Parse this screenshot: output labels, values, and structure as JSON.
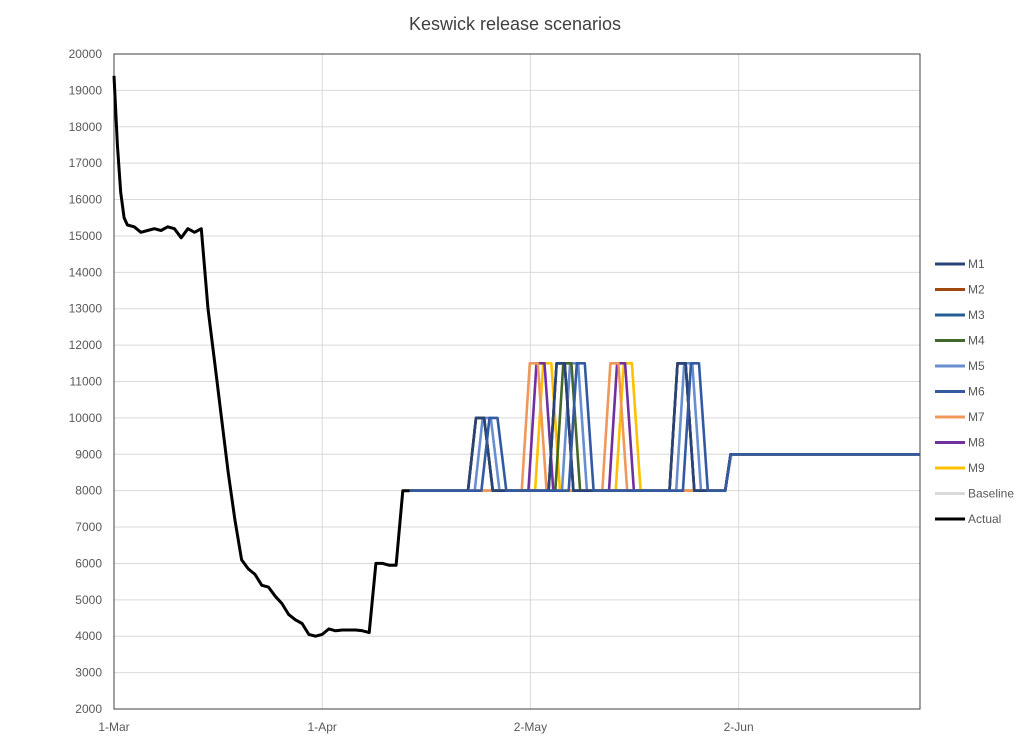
{
  "chart_data": {
    "type": "line",
    "title": "Keswick release scenarios",
    "xlabel": "",
    "ylabel": "",
    "ylim": [
      2000,
      20000
    ],
    "yticks": [
      2000,
      3000,
      4000,
      5000,
      6000,
      7000,
      8000,
      9000,
      10000,
      11000,
      12000,
      13000,
      14000,
      15000,
      16000,
      17000,
      18000,
      19000,
      20000
    ],
    "xlim": [
      "2020-03-01",
      "2020-06-29"
    ],
    "xticks": [
      {
        "date": "2020-03-01",
        "label": "1-Mar"
      },
      {
        "date": "2020-04-01",
        "label": "1-Apr"
      },
      {
        "date": "2020-05-02",
        "label": "2-May"
      },
      {
        "date": "2020-06-02",
        "label": "2-Jun"
      }
    ],
    "grid": true,
    "legend_position": "right",
    "series": [
      {
        "name": "M1",
        "color": "#264478",
        "pulses": [
          [
            "2020-04-23",
            10000
          ],
          [
            "2020-05-05",
            11500
          ],
          [
            "2020-05-23",
            11500
          ]
        ]
      },
      {
        "name": "M2",
        "color": "#9E480E",
        "pulses": [
          [
            "2020-04-23",
            10000
          ],
          [
            "2020-05-05",
            11500
          ],
          [
            "2020-05-23",
            11500
          ]
        ]
      },
      {
        "name": "M3",
        "color": "#255E91",
        "pulses": [
          [
            "2020-04-23",
            10000
          ],
          [
            "2020-05-05",
            11500
          ],
          [
            "2020-05-23",
            11500
          ]
        ]
      },
      {
        "name": "M4",
        "color": "#43682B",
        "pulses": [
          [
            "2020-04-23",
            10000
          ],
          [
            "2020-05-06",
            11500
          ],
          [
            "2020-05-23",
            11500
          ]
        ]
      },
      {
        "name": "M5",
        "color": "#698ED0",
        "pulses": [
          [
            "2020-04-24",
            10000
          ],
          [
            "2020-05-07",
            11500
          ],
          [
            "2020-05-24",
            11500
          ]
        ]
      },
      {
        "name": "M6",
        "color": "#335AA1",
        "pulses": [
          [
            "2020-04-25",
            10000
          ],
          [
            "2020-05-08",
            11500
          ],
          [
            "2020-05-25",
            11500
          ]
        ]
      },
      {
        "name": "M7",
        "color": "#F1975A",
        "pulses": [
          [
            "2020-05-01",
            11500
          ],
          [
            "2020-05-13",
            11500
          ]
        ]
      },
      {
        "name": "M8",
        "color": "#7030A0",
        "pulses": [
          [
            "2020-05-02",
            11500
          ],
          [
            "2020-05-14",
            11500
          ]
        ]
      },
      {
        "name": "M9",
        "color": "#FFC000",
        "pulses": [
          [
            "2020-05-03",
            11500
          ],
          [
            "2020-05-15",
            11500
          ]
        ]
      },
      {
        "name": "Baseline",
        "color": "#D9D9D9",
        "points": [
          [
            "2020-04-14",
            8000
          ],
          [
            "2020-05-31",
            8000
          ],
          [
            "2020-06-01",
            9000
          ],
          [
            "2020-06-29",
            9000
          ]
        ]
      },
      {
        "name": "Actual",
        "color": "#000000",
        "points": [
          [
            "2020-03-01",
            19400
          ],
          [
            "2020-03-01T12:00",
            17500
          ],
          [
            "2020-03-02",
            16200
          ],
          [
            "2020-03-02T12:00",
            15500
          ],
          [
            "2020-03-03",
            15300
          ],
          [
            "2020-03-04",
            15250
          ],
          [
            "2020-03-05",
            15100
          ],
          [
            "2020-03-06",
            15150
          ],
          [
            "2020-03-07",
            15200
          ],
          [
            "2020-03-08",
            15150
          ],
          [
            "2020-03-09",
            15250
          ],
          [
            "2020-03-10",
            15200
          ],
          [
            "2020-03-11",
            14950
          ],
          [
            "2020-03-12",
            15200
          ],
          [
            "2020-03-13",
            15100
          ],
          [
            "2020-03-14",
            15200
          ],
          [
            "2020-03-15",
            13000
          ],
          [
            "2020-03-16",
            11500
          ],
          [
            "2020-03-17",
            10000
          ],
          [
            "2020-03-18",
            8500
          ],
          [
            "2020-03-19",
            7200
          ],
          [
            "2020-03-20",
            6100
          ],
          [
            "2020-03-21",
            5850
          ],
          [
            "2020-03-22",
            5700
          ],
          [
            "2020-03-23",
            5400
          ],
          [
            "2020-03-24",
            5350
          ],
          [
            "2020-03-25",
            5100
          ],
          [
            "2020-03-26",
            4900
          ],
          [
            "2020-03-27",
            4600
          ],
          [
            "2020-03-28",
            4450
          ],
          [
            "2020-03-29",
            4350
          ],
          [
            "2020-03-30",
            4050
          ],
          [
            "2020-03-31",
            4000
          ],
          [
            "2020-04-01",
            4050
          ],
          [
            "2020-04-02",
            4200
          ],
          [
            "2020-04-03",
            4150
          ],
          [
            "2020-04-04",
            4170
          ],
          [
            "2020-04-05",
            4170
          ],
          [
            "2020-04-06",
            4170
          ],
          [
            "2020-04-07",
            4150
          ],
          [
            "2020-04-08",
            4100
          ],
          [
            "2020-04-09",
            6000
          ],
          [
            "2020-04-10",
            6000
          ],
          [
            "2020-04-11",
            5950
          ],
          [
            "2020-04-12",
            5950
          ],
          [
            "2020-04-13",
            8000
          ],
          [
            "2020-04-14",
            8000
          ]
        ]
      }
    ]
  }
}
